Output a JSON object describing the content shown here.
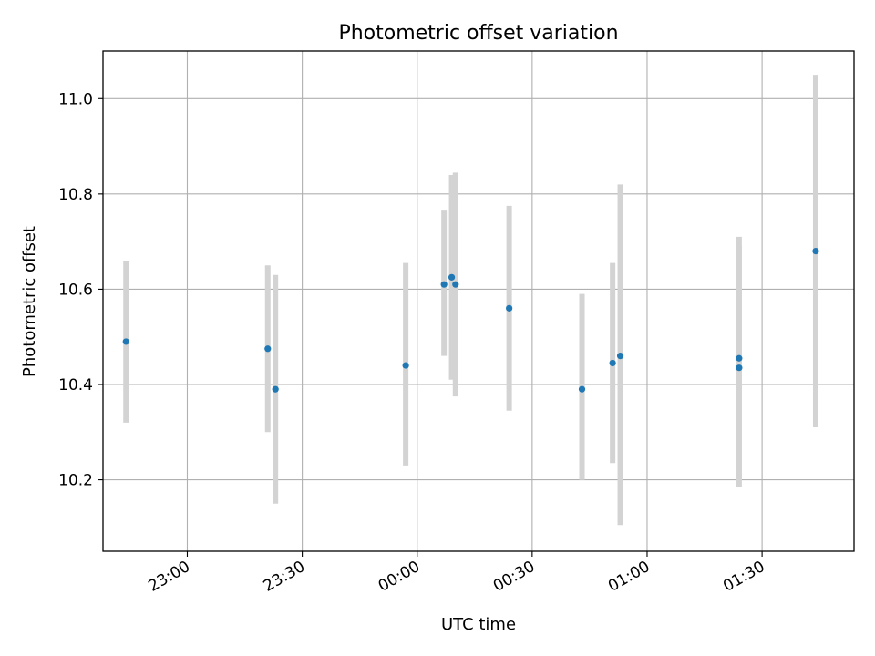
{
  "chart_data": {
    "type": "scatter",
    "title": "Photometric offset variation",
    "xlabel": "UTC time",
    "ylabel": "Photometric offset",
    "x_axis_type": "time",
    "xlim": [
      "22:38",
      "01:54"
    ],
    "ylim": [
      10.05,
      11.1
    ],
    "x_ticks": [
      "23:00",
      "23:30",
      "00:00",
      "00:30",
      "01:00",
      "01:30"
    ],
    "y_ticks": [
      "10.2",
      "10.4",
      "10.6",
      "10.8",
      "11.0"
    ],
    "grid": true,
    "legend": "none",
    "colors": {
      "point": "#1f77b4",
      "errorbar": "#d3d3d3",
      "grid": "#b0b0b0"
    },
    "points": [
      {
        "x": "22:44",
        "y": 10.49,
        "low": 10.32,
        "high": 10.66
      },
      {
        "x": "23:21",
        "y": 10.475,
        "low": 10.3,
        "high": 10.65
      },
      {
        "x": "23:23",
        "y": 10.39,
        "low": 10.15,
        "high": 10.63
      },
      {
        "x": "23:57",
        "y": 10.44,
        "low": 10.23,
        "high": 10.655
      },
      {
        "x": "00:07",
        "y": 10.61,
        "low": 10.46,
        "high": 10.765
      },
      {
        "x": "00:09",
        "y": 10.625,
        "low": 10.41,
        "high": 10.84
      },
      {
        "x": "00:10",
        "y": 10.61,
        "low": 10.375,
        "high": 10.845
      },
      {
        "x": "00:24",
        "y": 10.56,
        "low": 10.345,
        "high": 10.775
      },
      {
        "x": "00:43",
        "y": 10.39,
        "low": 10.2,
        "high": 10.59
      },
      {
        "x": "00:51",
        "y": 10.445,
        "low": 10.235,
        "high": 10.655
      },
      {
        "x": "00:53",
        "y": 10.46,
        "low": 10.105,
        "high": 10.82
      },
      {
        "x": "01:24",
        "y": 10.435,
        "low": 10.185,
        "high": 10.69
      },
      {
        "x": "01:24",
        "y": 10.455,
        "low": 10.2,
        "high": 10.71
      },
      {
        "x": "01:44",
        "y": 10.68,
        "low": 10.31,
        "high": 11.05
      }
    ]
  }
}
